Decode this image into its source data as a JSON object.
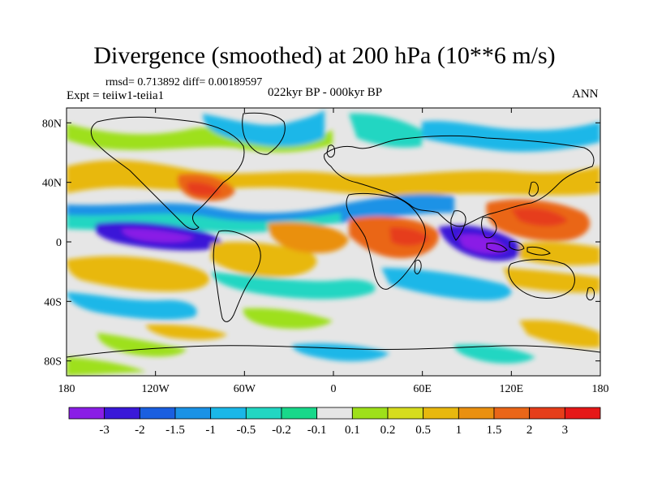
{
  "title": "Divergence (smoothed) at 200 hPa (10**6 m/s)",
  "stats_text": "rmsd= 0.713892 diff= 0.00189597",
  "experiment_text": "Expt = teiiw1-teiia1",
  "period_text": "022kyr BP - 000kyr BP",
  "season_text": "ANN",
  "map": {
    "lon_range": [
      -180,
      180
    ],
    "lat_range": [
      -90,
      90
    ],
    "y_axis_labels": [
      {
        "text": "80N",
        "lat": 80
      },
      {
        "text": "40N",
        "lat": 40
      },
      {
        "text": "0",
        "lat": 0
      },
      {
        "text": "40S",
        "lat": -40
      },
      {
        "text": "80S",
        "lat": -80
      }
    ],
    "x_axis_labels": [
      {
        "text": "180",
        "lon": -180
      },
      {
        "text": "120W",
        "lon": -120
      },
      {
        "text": "60W",
        "lon": -60
      },
      {
        "text": "0",
        "lon": 0
      },
      {
        "text": "60E",
        "lon": 60
      },
      {
        "text": "120E",
        "lon": 120
      },
      {
        "text": "180",
        "lon": 180
      }
    ],
    "background_color": "#e6e6e6",
    "coastline_color": "#000000"
  },
  "colorbar": {
    "colors": [
      "#8a1ee6",
      "#3a18d8",
      "#1a5fe0",
      "#1a92e6",
      "#1ab7e8",
      "#22d6c2",
      "#18d88a",
      "#e6e6e6",
      "#9ee01a",
      "#d6dc1e",
      "#e8b80e",
      "#ea9010",
      "#ea6618",
      "#e63e1a",
      "#e61818"
    ],
    "labels": [
      "-3",
      "-2",
      "-1.5",
      "-1",
      "-0.5",
      "-0.2",
      "-0.1",
      "0.1",
      "0.2",
      "0.5",
      "1",
      "1.5",
      "2",
      "3"
    ]
  }
}
